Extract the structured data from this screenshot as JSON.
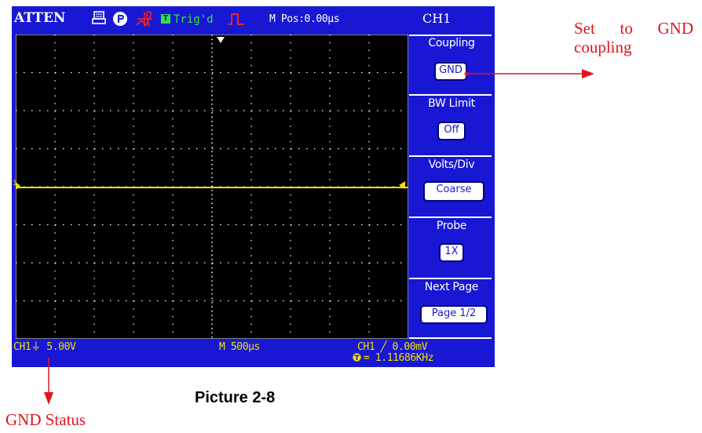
{
  "screen": {
    "brand": "ATTEN",
    "trigger_badge": "T",
    "trigger_state": "Trig'd",
    "menu_position": "M Pos:0.00µs",
    "channel_title": "CH1",
    "channel_marker": "1",
    "colors": {
      "background": "#1818d4",
      "grid_area": "#000000",
      "grid_dots": "#ffffff",
      "trace": "#f0e000",
      "trig_status": "#2ee63a",
      "menu_button": "#ffffff",
      "status_text": "#f0e000"
    },
    "icons": [
      "print-icon",
      "p-circle-icon",
      "wave-icon",
      "trigger-badge-icon",
      "pulse-icon",
      "trigger-position-marker-icon",
      "ch1-ground-marker-icon",
      "trace-level-marker-icon",
      "trigger-frequency-icon"
    ]
  },
  "menu": [
    {
      "label": "Coupling",
      "value": "GND"
    },
    {
      "label": "BW Limit",
      "value": "Off"
    },
    {
      "label": "Volts/Div",
      "value": "Coarse"
    },
    {
      "label": "Probe",
      "value": "1X"
    },
    {
      "label": "Next Page",
      "value": "Page 1/2"
    }
  ],
  "status": {
    "ch1_scale": "CH1⏚ 5.00V",
    "timebase": "M 500µs",
    "trigger_level": "CH1 ╱ 0.00mV",
    "trigger_frequency": "= 1.11686KHz"
  },
  "annotations": {
    "right": "Set to GND coupling",
    "left": "GND Status",
    "caption": "Picture 2-8",
    "arrow_color": "#e0141e"
  }
}
